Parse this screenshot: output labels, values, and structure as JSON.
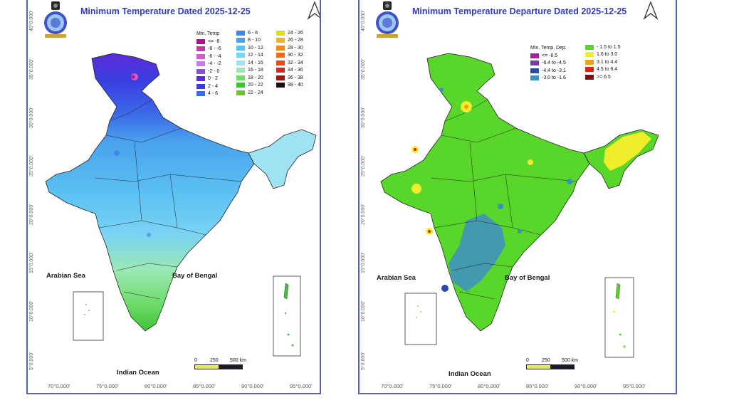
{
  "maps": [
    {
      "id": "min-temp",
      "title": "Minimum Temperature Dated 2025-12-25",
      "legend": {
        "title": "Min. Temp",
        "columns": [
          [
            {
              "label": "<= -8",
              "color": "#b4128c"
            },
            {
              "label": "-8 - -6",
              "color": "#c23aa8"
            },
            {
              "label": "-6 - -4",
              "color": "#d060c8"
            },
            {
              "label": "-4 - -2",
              "color": "#c97de0"
            },
            {
              "label": "-2 - 0",
              "color": "#8a4fe0"
            },
            {
              "label": "0 - 2",
              "color": "#5a2bd8"
            },
            {
              "label": "2 - 4",
              "color": "#3a3ee0"
            },
            {
              "label": "4 - 6",
              "color": "#3b6ae8"
            }
          ],
          [
            {
              "label": "6 - 8",
              "color": "#3f86e6"
            },
            {
              "label": "8 - 10",
              "color": "#4aa3ee"
            },
            {
              "label": "10 - 12",
              "color": "#5bc0f2"
            },
            {
              "label": "12 - 14",
              "color": "#79d3f4"
            },
            {
              "label": "14 - 16",
              "color": "#9fe2f2"
            },
            {
              "label": "16 - 18",
              "color": "#9be8b5"
            },
            {
              "label": "18 - 20",
              "color": "#6fdc6a"
            },
            {
              "label": "20 - 22",
              "color": "#3fc23a"
            },
            {
              "label": "22 - 24",
              "color": "#6fc62a"
            }
          ],
          [
            {
              "label": "24 - 26",
              "color": "#d8de22"
            },
            {
              "label": "26 - 28",
              "color": "#f4b21e"
            },
            {
              "label": "28 - 30",
              "color": "#f48a1e"
            },
            {
              "label": "30 - 32",
              "color": "#ee6a1e"
            },
            {
              "label": "32 - 34",
              "color": "#e44a1a"
            },
            {
              "label": "34 - 36",
              "color": "#cc2a1a"
            },
            {
              "label": "36 - 38",
              "color": "#9a1a14"
            },
            {
              "label": "38 - 40",
              "color": "#1a1010"
            }
          ]
        ]
      },
      "seas": {
        "arabian": "Arabian Sea",
        "bengal": "Bay of Bengal",
        "indian": "Indian Ocean"
      },
      "scale": {
        "n0": "0",
        "n1": "250",
        "n2": "500 km"
      },
      "lat_ticks": [
        "40°0.000'",
        "35°0.000'",
        "30°0.000'",
        "25°0.000'",
        "20°0.000'",
        "15°0.000'",
        "10°0.000'",
        "5°0.000'"
      ],
      "lon_ticks": [
        "70°0.000'",
        "75°0.000'",
        "80°0.000'",
        "85°0.000'",
        "90°0.000'",
        "95°0.000'"
      ]
    },
    {
      "id": "min-temp-departure",
      "title": "Minimum Temperature Departure Dated 2025-12-25",
      "legend": {
        "title": "Min. Temp. Dep.",
        "columns": [
          [
            {
              "label": "<= -6.5",
              "color": "#b01aa0"
            },
            {
              "label": "-6.4 to -4.5",
              "color": "#7a3aa8"
            },
            {
              "label": "-4.4 to -3.1",
              "color": "#2a4aa8"
            },
            {
              "label": "-3.0 to -1.6",
              "color": "#3f8ec6"
            }
          ],
          [
            {
              "label": "- 1.5 to 1.5",
              "color": "#58d62a"
            },
            {
              "label": "1.6 to 3.0",
              "color": "#f0ee2a"
            },
            {
              "label": "3.1 to 4.4",
              "color": "#f0a21e"
            },
            {
              "label": "4.5 to 6.4",
              "color": "#d8261a"
            },
            {
              "label": ">= 6.5",
              "color": "#7a1010"
            }
          ]
        ]
      },
      "seas": {
        "arabian": "Arabian Sea",
        "bengal": "Bay of Bengal",
        "indian": "Indian Ocean"
      },
      "scale": {
        "n0": "0",
        "n1": "250",
        "n2": "500 km"
      },
      "lat_ticks": [
        "40°0.000'",
        "35°0.000'",
        "30°0.000'",
        "25°0.000'",
        "20°0.000'",
        "15°0.000'",
        "10°0.000'",
        "5°0.000'"
      ],
      "lon_ticks": [
        "70°0.000'",
        "75°0.000'",
        "80°0.000'",
        "85°0.000'",
        "90°0.000'",
        "95°0.000'"
      ]
    }
  ],
  "colors": {
    "frame": "#5a5fc4",
    "title": "#2d3cc0"
  }
}
